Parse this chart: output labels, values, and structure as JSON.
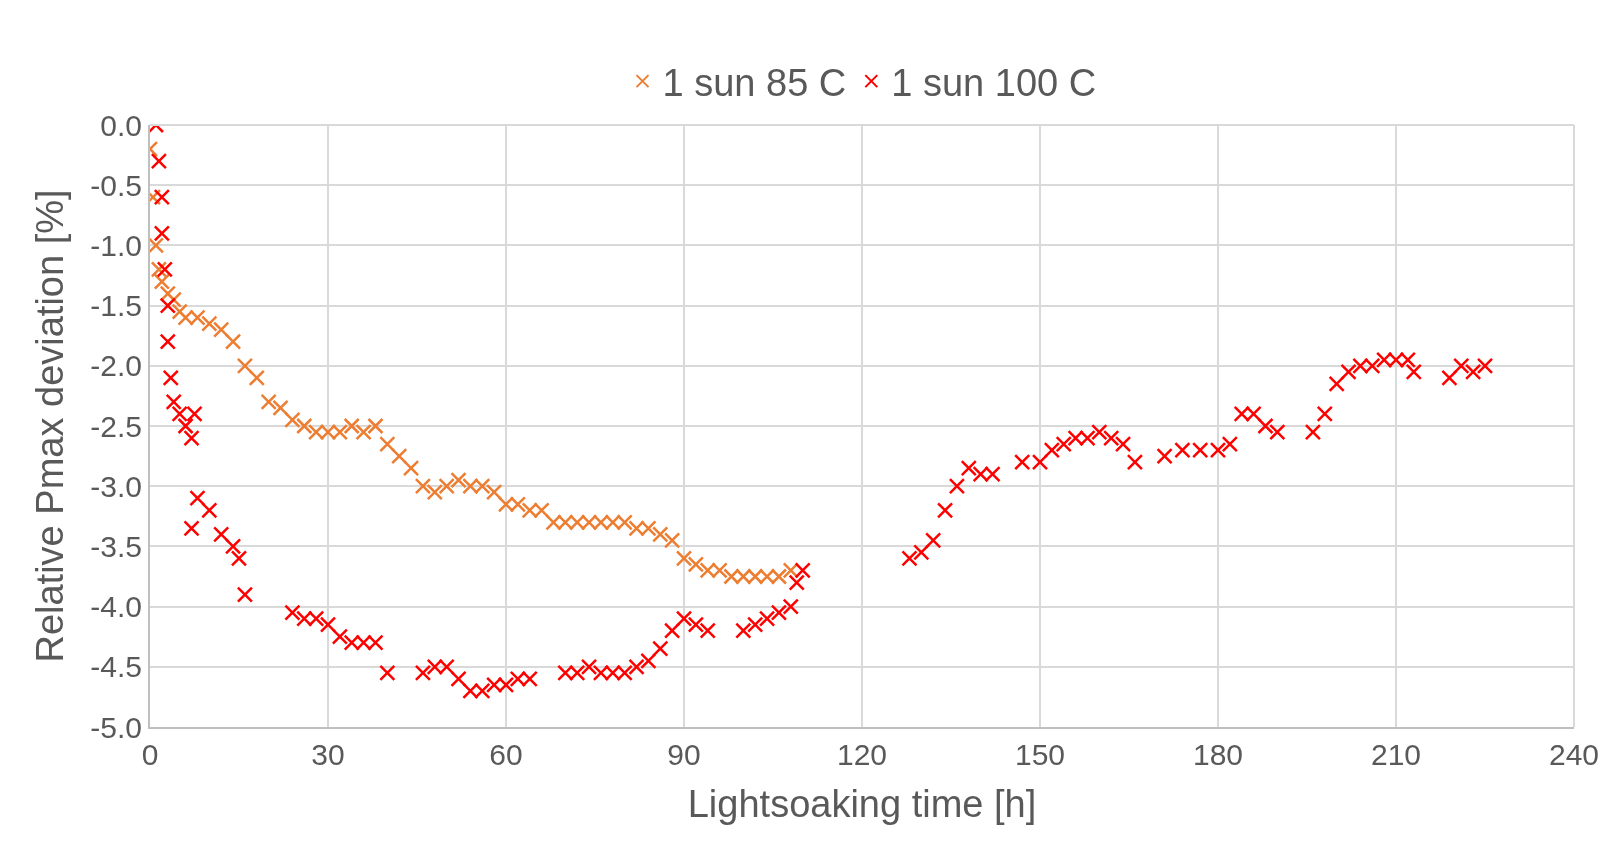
{
  "chart_data": {
    "type": "scatter",
    "xlabel": "Lightsoaking time [h]",
    "ylabel": "Relative Pmax deviation [%]",
    "xlim": [
      0,
      240
    ],
    "xticks": [
      0,
      30,
      60,
      90,
      120,
      150,
      180,
      210,
      240
    ],
    "ylim": [
      -5,
      0
    ],
    "yticks": [
      {
        "value": 0,
        "label": "0.0"
      },
      {
        "value": -0.5,
        "label": "-0.5"
      },
      {
        "value": -1,
        "label": "-1.0"
      },
      {
        "value": -1.5,
        "label": "-1.5"
      },
      {
        "value": -2,
        "label": "-2.0"
      },
      {
        "value": -2.5,
        "label": "-2.5"
      },
      {
        "value": -3,
        "label": "-3.0"
      },
      {
        "value": -3.5,
        "label": "-3.5"
      },
      {
        "value": -4,
        "label": "-4.0"
      },
      {
        "value": -4.5,
        "label": "-4.5"
      },
      {
        "value": -5,
        "label": "-5.0"
      }
    ],
    "grid": true,
    "legend": "top",
    "marker": "cross",
    "series": [
      {
        "name": "1 sun 85 C",
        "color": "#ed7d31",
        "x": [
          0,
          0.5,
          1,
          1.5,
          2,
          3,
          4,
          5,
          6,
          8,
          10,
          12,
          14,
          16,
          18,
          20,
          22,
          24,
          26,
          28,
          30,
          32,
          34,
          36,
          38,
          40,
          42,
          44,
          46,
          48,
          50,
          52,
          54,
          56,
          58,
          60,
          62,
          64,
          66,
          68,
          70,
          72,
          74,
          76,
          78,
          80,
          82,
          84,
          86,
          88,
          90,
          92,
          94,
          96,
          98,
          100,
          102,
          104,
          106,
          108
        ],
        "values": [
          -0.2,
          -0.6,
          -1.0,
          -1.2,
          -1.3,
          -1.4,
          -1.45,
          -1.55,
          -1.6,
          -1.6,
          -1.65,
          -1.7,
          -1.8,
          -2.0,
          -2.1,
          -2.3,
          -2.35,
          -2.45,
          -2.5,
          -2.55,
          -2.55,
          -2.55,
          -2.5,
          -2.55,
          -2.5,
          -2.65,
          -2.75,
          -2.85,
          -3.0,
          -3.05,
          -3.0,
          -2.95,
          -3.0,
          -3.0,
          -3.05,
          -3.15,
          -3.15,
          -3.2,
          -3.2,
          -3.3,
          -3.3,
          -3.3,
          -3.3,
          -3.3,
          -3.3,
          -3.3,
          -3.35,
          -3.35,
          -3.4,
          -3.45,
          -3.6,
          -3.65,
          -3.7,
          -3.7,
          -3.75,
          -3.75,
          -3.75,
          -3.75,
          -3.75,
          -3.7
        ]
      },
      {
        "name": "1 sun 100 C",
        "color": "#ff0000",
        "x": [
          1,
          1.5,
          2,
          2,
          2.5,
          3,
          3,
          3.5,
          4,
          5,
          6,
          7,
          7.5,
          8,
          10,
          12,
          14,
          15,
          16,
          7,
          24,
          26,
          28,
          30,
          32,
          34,
          36,
          38,
          40,
          46,
          48,
          50,
          52,
          54,
          56,
          58,
          60,
          62,
          64,
          70,
          72,
          74,
          76,
          78,
          80,
          82,
          84,
          86,
          88,
          90,
          92,
          94,
          100,
          102,
          104,
          106,
          108,
          109,
          110,
          128,
          130,
          132,
          134,
          136,
          138,
          140,
          142,
          147,
          150,
          152,
          154,
          156,
          158,
          160,
          162,
          164,
          166,
          171,
          174,
          177,
          180,
          182,
          184,
          186,
          188,
          190,
          196,
          198,
          200,
          202,
          204,
          206,
          208,
          210,
          212,
          213,
          219,
          221,
          223,
          225
        ],
        "values": [
          0,
          -0.3,
          -0.6,
          -0.9,
          -1.2,
          -1.5,
          -1.8,
          -2.1,
          -2.3,
          -2.4,
          -2.5,
          -2.6,
          -2.4,
          -3.1,
          -3.2,
          -3.4,
          -3.5,
          -3.6,
          -3.9,
          -3.35,
          -4.05,
          -4.1,
          -4.1,
          -4.15,
          -4.25,
          -4.3,
          -4.3,
          -4.3,
          -4.55,
          -4.55,
          -4.5,
          -4.5,
          -4.6,
          -4.7,
          -4.7,
          -4.65,
          -4.65,
          -4.6,
          -4.6,
          -4.55,
          -4.55,
          -4.5,
          -4.55,
          -4.55,
          -4.55,
          -4.5,
          -4.45,
          -4.35,
          -4.2,
          -4.1,
          -4.15,
          -4.2,
          -4.2,
          -4.15,
          -4.1,
          -4.05,
          -4.0,
          -3.8,
          -3.7,
          -3.6,
          -3.55,
          -3.45,
          -3.2,
          -3.0,
          -2.85,
          -2.9,
          -2.9,
          -2.8,
          -2.8,
          -2.7,
          -2.65,
          -2.6,
          -2.6,
          -2.55,
          -2.6,
          -2.65,
          -2.8,
          -2.75,
          -2.7,
          -2.7,
          -2.7,
          -2.65,
          -2.4,
          -2.4,
          -2.5,
          -2.55,
          -2.55,
          -2.4,
          -2.15,
          -2.05,
          -2.0,
          -2.0,
          -1.95,
          -1.95,
          -1.95,
          -2.05,
          -2.1,
          -2.0,
          -2.05,
          -2.0
        ]
      }
    ]
  }
}
